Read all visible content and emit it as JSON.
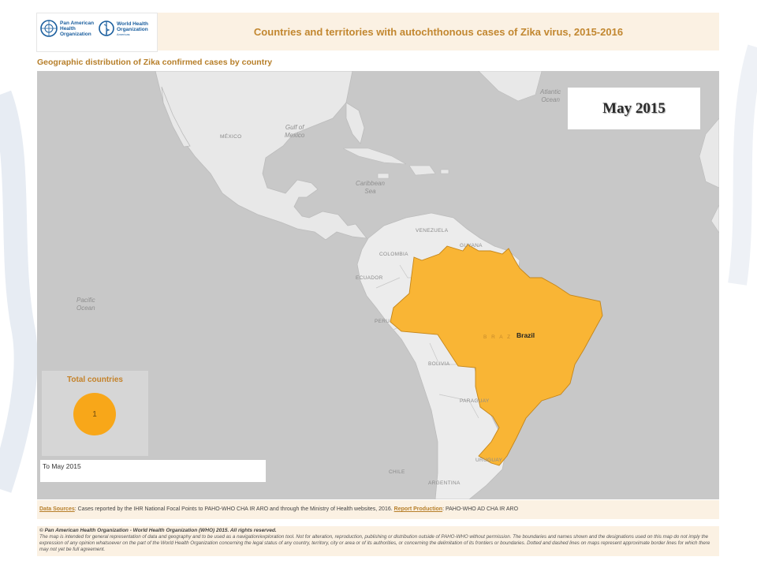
{
  "header": {
    "title": "Countries and territories with autochthonous cases of Zika virus, 2015-2016",
    "logos": {
      "paho": {
        "line1": "Pan American",
        "line2": "Health",
        "line3": "Organization"
      },
      "who": {
        "line1": "World Health",
        "line2": "Organization",
        "sub": "Americas"
      }
    }
  },
  "subtitle": "Geographic distribution of Zika confirmed cases by country",
  "map": {
    "date_label": "May 2015",
    "highlight_color": "#f9b535",
    "highlighted_country": "Brazil",
    "country_labels": {
      "mexico": "MÉXICO",
      "venezuela": "VENEZUELA",
      "guyana": "GUYANA",
      "colombia": "COLOMBIA",
      "ecuador": "ECUADOR",
      "peru": "PERU",
      "bolivia": "BOLIVIA",
      "paraguay": "PARAGUAY",
      "uruguay": "URUGUAY",
      "chile": "CHILE",
      "argentina": "ARGENTINA",
      "brazil_faint": "B R A Z"
    },
    "sea_labels": {
      "gulf_line1": "Gulf of",
      "gulf_line2": "Mexico",
      "caribbean_line1": "Caribbean",
      "caribbean_line2": "Sea",
      "pacific_line1": "Pacific",
      "pacific_line2": "Ocean",
      "atlantic_line1": "Atlantic",
      "atlantic_line2": "Ocean"
    },
    "total_panel": {
      "label": "Total countries",
      "count": "1",
      "circle_color": "#f8a719"
    },
    "period_text": "To May 2015"
  },
  "sources": {
    "label": "Data Sources",
    "text": ": Cases reported by the IHR National Focal Points to PAHO-WHO CHA IR ARO and through the Ministry of Health websites, 2016. ",
    "report_label": "Report Production",
    "report_text": ": PAHO-WHO AD CHA IR ARO"
  },
  "footer": {
    "copyright": "© Pan American Health Organization - World Health Organization (WHO) 2015. All rights reserved.",
    "disclaimer": "The map is intended for general representation of data and geography and to be used as a navigation/exploration tool. Not for alteration, reproduction, publishing or distribution outside of PAHO-WHO without permission. The boundaries and names shown and the designations used on this map do not imply the expression of any opinion whatsoever on the part of the World Health Organization concerning the legal status of any country, territory, city or area or of its authorities, or concerning the delimitation of its frontiers or boundaries. Dotted and dashed lines on maps represent approximate border lines for which there may not yet be full agreement."
  }
}
